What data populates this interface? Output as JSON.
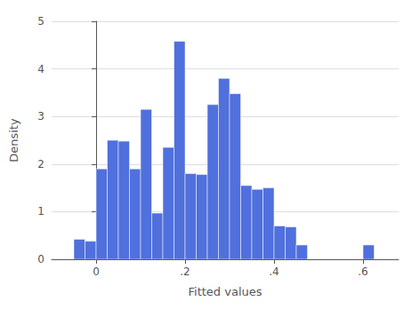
{
  "chart_data": {
    "type": "bar",
    "x_label": "Fitted values",
    "y_label": "Density",
    "x": [
      -0.05,
      -0.025,
      0.0,
      0.025,
      0.05,
      0.075,
      0.1,
      0.125,
      0.15,
      0.175,
      0.2,
      0.225,
      0.25,
      0.275,
      0.3,
      0.325,
      0.35,
      0.375,
      0.4,
      0.425,
      0.45,
      0.475,
      0.5,
      0.6
    ],
    "values": [
      0.42,
      0.38,
      1.9,
      2.5,
      2.48,
      1.9,
      3.15,
      0.97,
      2.35,
      4.58,
      1.8,
      1.78,
      3.25,
      3.8,
      3.48,
      1.55,
      1.47,
      1.5,
      0.7,
      0.68,
      0.3,
      0.0,
      0.0,
      0.3
    ],
    "xlim": [
      -0.1,
      0.68
    ],
    "xticks": [
      0,
      {
        "value": 0.2,
        "label": ".2"
      },
      {
        "value": 0.4,
        "label": ".4"
      },
      {
        "value": 0.6,
        "label": ".6"
      }
    ],
    "ylim": [
      0,
      5
    ],
    "yticks": [
      0,
      1,
      2,
      3,
      4,
      5
    ],
    "grid": true
  }
}
